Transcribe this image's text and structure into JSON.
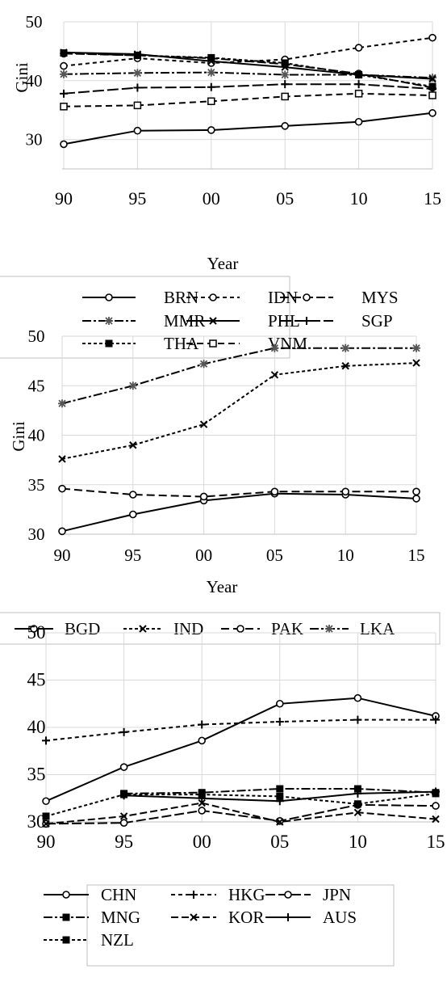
{
  "chart_data": [
    {
      "type": "line",
      "ylabel": "Gini",
      "xlabel": "Year",
      "x": [
        "90",
        "95",
        "00",
        "05",
        "10",
        "15"
      ],
      "y_ticks": [
        30,
        40,
        50
      ],
      "ylim": [
        25,
        50
      ],
      "grid": true,
      "legend_position": "bottom",
      "series": [
        {
          "name": "BRN",
          "values": [
            29.2,
            31.5,
            31.6,
            32.3,
            33.0,
            34.5
          ],
          "color": "#000000",
          "dash": "",
          "marker": "circle"
        },
        {
          "name": "IDN",
          "values": [
            42.5,
            43.8,
            43.0,
            43.6,
            45.6,
            47.3
          ],
          "color": "#000000",
          "dash": "5,4",
          "marker": "circle"
        },
        {
          "name": "MYS",
          "values": [
            44.6,
            44.3,
            43.8,
            42.8,
            41.2,
            38.8
          ],
          "color": "#000000",
          "dash": "11,4",
          "marker": "circle"
        },
        {
          "name": "MMR",
          "values": [
            41.1,
            41.3,
            41.4,
            41.0,
            41.0,
            40.5
          ],
          "color": "#000000",
          "dash": "11,3,3,3",
          "marker": "star"
        },
        {
          "name": "PHL",
          "values": [
            44.8,
            44.5,
            43.3,
            42.3,
            41.0,
            40.3
          ],
          "color": "#000000",
          "dash": "",
          "marker": "x"
        },
        {
          "name": "SGP",
          "values": [
            37.8,
            38.8,
            38.9,
            39.4,
            39.4,
            38.6
          ],
          "color": "#000000",
          "dash": "14,4",
          "marker": "plus"
        },
        {
          "name": "THA",
          "values": [
            44.7,
            44.3,
            43.9,
            43.0,
            41.0,
            39.0
          ],
          "color": "#000000",
          "dash": "4,3",
          "marker": "square"
        },
        {
          "name": "VNM",
          "values": [
            35.6,
            35.8,
            36.5,
            37.3,
            37.8,
            37.5
          ],
          "color": "#000000",
          "dash": "8,5",
          "marker": "square-open"
        }
      ]
    },
    {
      "type": "line",
      "ylabel": "Gini",
      "xlabel": "Year",
      "x": [
        "90",
        "95",
        "00",
        "05",
        "10",
        "15"
      ],
      "y_ticks": [
        30,
        35,
        40,
        45,
        50
      ],
      "ylim": [
        30,
        50
      ],
      "grid": true,
      "legend_position": "bottom",
      "series": [
        {
          "name": "BGD",
          "values": [
            30.3,
            32.0,
            33.4,
            34.1,
            34.0,
            33.6
          ],
          "color": "#000000",
          "dash": "",
          "marker": "circle"
        },
        {
          "name": "IND",
          "values": [
            37.6,
            39.0,
            41.1,
            46.1,
            47.0,
            47.3
          ],
          "color": "#000000",
          "dash": "4,3",
          "marker": "x"
        },
        {
          "name": "PAK",
          "values": [
            34.6,
            34.0,
            33.8,
            34.3,
            34.3,
            34.3
          ],
          "color": "#000000",
          "dash": "10,5",
          "marker": "circle"
        },
        {
          "name": "LKA",
          "values": [
            43.2,
            45.0,
            47.2,
            48.8,
            48.8,
            48.8
          ],
          "color": "#000000",
          "dash": "11,3,3,3",
          "marker": "star"
        }
      ]
    },
    {
      "type": "line",
      "ylabel": "",
      "xlabel": "",
      "x": [
        "90",
        "95",
        "00",
        "05",
        "10",
        "15"
      ],
      "y_ticks": [
        30,
        35,
        40,
        45,
        50
      ],
      "ylim": [
        30,
        50
      ],
      "grid": true,
      "legend_position": "bottom",
      "series": [
        {
          "name": "CHN",
          "values": [
            32.2,
            35.8,
            38.6,
            42.5,
            43.1,
            41.2
          ],
          "color": "#000000",
          "dash": "",
          "marker": "circle"
        },
        {
          "name": "HKG",
          "values": [
            38.6,
            39.5,
            40.3,
            40.6,
            40.8,
            40.8
          ],
          "color": "#000000",
          "dash": "5,4",
          "marker": "plus"
        },
        {
          "name": "JPN",
          "values": [
            29.8,
            29.9,
            31.2,
            30.1,
            31.8,
            31.7
          ],
          "color": "#000000",
          "dash": "12,4",
          "marker": "circle"
        },
        {
          "name": "MNG",
          "values": [
            null,
            33.0,
            33.1,
            33.5,
            33.5,
            33.1
          ],
          "color": "#000000",
          "dash": "11,3,3,3",
          "marker": "square"
        },
        {
          "name": "KOR",
          "values": [
            29.8,
            30.6,
            32.0,
            30.0,
            31.0,
            30.3
          ],
          "color": "#000000",
          "dash": "9,4",
          "marker": "x"
        },
        {
          "name": "AUS",
          "values": [
            null,
            32.8,
            32.5,
            32.2,
            33.0,
            33.2
          ],
          "color": "#000000",
          "dash": "",
          "marker": "plus"
        },
        {
          "name": "NZL",
          "values": [
            30.6,
            32.9,
            32.9,
            32.7,
            31.9,
            33.0
          ],
          "color": "#000000",
          "dash": "4,3",
          "marker": "square"
        }
      ]
    }
  ]
}
